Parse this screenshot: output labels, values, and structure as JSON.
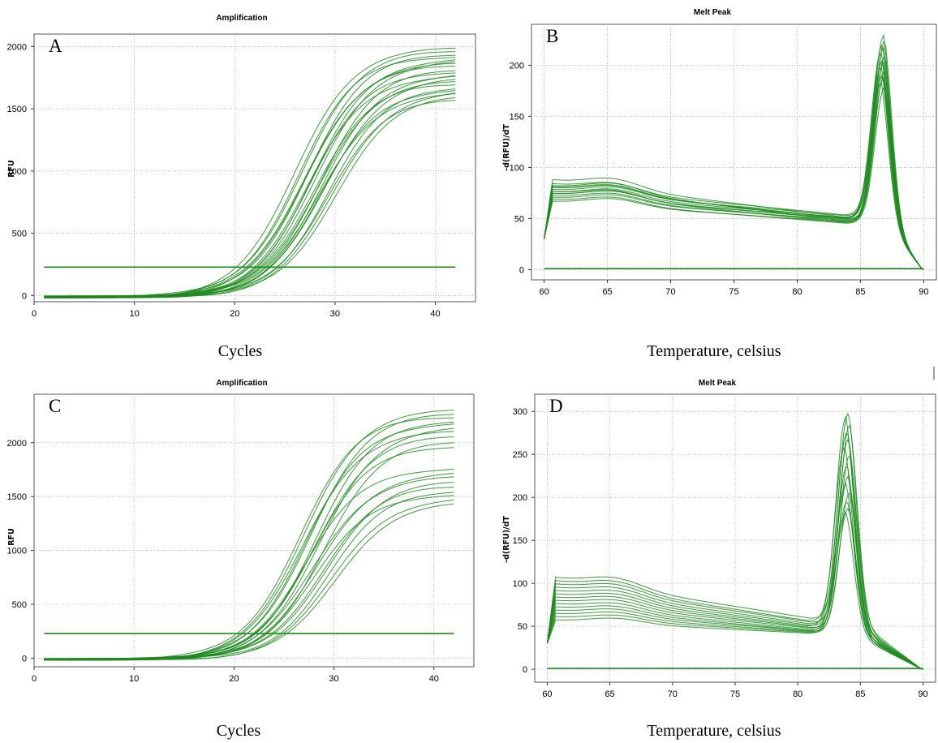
{
  "chart_data": [
    {
      "type": "line",
      "panel_letter": "A",
      "title": "Amplification",
      "ylabel": "RFU",
      "xlabel": "Cycles",
      "xlim": [
        0,
        44
      ],
      "ylim": [
        -50,
        2100
      ],
      "xticks": [
        0,
        10,
        20,
        30,
        40
      ],
      "yticks": [
        0,
        500,
        1000,
        1500,
        2000
      ],
      "grid": true,
      "threshold": 228,
      "series_color": "#1a8a1a",
      "x": [
        1,
        42
      ],
      "series": [
        {
          "plateau": 2000,
          "ct": 26.0
        },
        {
          "plateau": 1980,
          "ct": 26.6
        },
        {
          "plateau": 1960,
          "ct": 27.2
        },
        {
          "plateau": 1940,
          "ct": 26.3
        },
        {
          "plateau": 1920,
          "ct": 27.8
        },
        {
          "plateau": 1900,
          "ct": 28.1
        },
        {
          "plateau": 1880,
          "ct": 27.0
        },
        {
          "plateau": 1860,
          "ct": 26.8
        },
        {
          "plateau": 1840,
          "ct": 28.5
        },
        {
          "plateau": 1820,
          "ct": 27.5
        },
        {
          "plateau": 1800,
          "ct": 28.8
        },
        {
          "plateau": 1780,
          "ct": 27.3
        },
        {
          "plateau": 1760,
          "ct": 29.0
        },
        {
          "plateau": 1740,
          "ct": 28.2
        },
        {
          "plateau": 1720,
          "ct": 27.9
        },
        {
          "plateau": 1700,
          "ct": 29.4
        },
        {
          "plateau": 1680,
          "ct": 28.7
        },
        {
          "plateau": 1660,
          "ct": 29.8
        },
        {
          "plateau": 1640,
          "ct": 28.4
        },
        {
          "plateau": 1620,
          "ct": 30.0
        },
        {
          "plateau": 1600,
          "ct": 29.2
        }
      ]
    },
    {
      "type": "line",
      "panel_letter": "B",
      "title": "Melt Peak",
      "ylabel": "-d(RFU)/dT",
      "xlabel": "Temperature, celsius",
      "xlim": [
        59,
        91
      ],
      "ylim": [
        -10,
        240
      ],
      "xticks": [
        60,
        65,
        70,
        75,
        80,
        85,
        90
      ],
      "yticks": [
        0,
        50,
        100,
        150,
        200
      ],
      "grid": true,
      "baseline": 1,
      "series_color": "#1a8a1a",
      "x": [
        60,
        90
      ],
      "series": [
        {
          "peak": 232,
          "peak_temp": 86.8,
          "shoulder": 88,
          "valley": 52
        },
        {
          "peak": 228,
          "peak_temp": 86.9,
          "shoulder": 85,
          "valley": 54
        },
        {
          "peak": 224,
          "peak_temp": 86.7,
          "shoulder": 92,
          "valley": 56
        },
        {
          "peak": 220,
          "peak_temp": 86.8,
          "shoulder": 80,
          "valley": 50
        },
        {
          "peak": 216,
          "peak_temp": 86.6,
          "shoulder": 84,
          "valley": 55
        },
        {
          "peak": 212,
          "peak_temp": 86.9,
          "shoulder": 78,
          "valley": 53
        },
        {
          "peak": 208,
          "peak_temp": 86.7,
          "shoulder": 82,
          "valley": 57
        },
        {
          "peak": 205,
          "peak_temp": 86.8,
          "shoulder": 76,
          "valley": 51
        },
        {
          "peak": 202,
          "peak_temp": 86.6,
          "shoulder": 86,
          "valley": 58
        },
        {
          "peak": 198,
          "peak_temp": 86.9,
          "shoulder": 74,
          "valley": 52
        },
        {
          "peak": 194,
          "peak_temp": 86.7,
          "shoulder": 80,
          "valley": 55
        },
        {
          "peak": 190,
          "peak_temp": 86.8,
          "shoulder": 72,
          "valley": 49
        },
        {
          "peak": 186,
          "peak_temp": 86.6,
          "shoulder": 78,
          "valley": 54
        },
        {
          "peak": 182,
          "peak_temp": 86.9,
          "shoulder": 70,
          "valley": 50
        }
      ]
    },
    {
      "type": "line",
      "panel_letter": "C",
      "title": "Amplification",
      "ylabel": "RFU",
      "xlabel": "Cycles",
      "xlim": [
        0,
        44
      ],
      "ylim": [
        -80,
        2450
      ],
      "xticks": [
        0,
        10,
        20,
        30,
        40
      ],
      "yticks": [
        0,
        500,
        1000,
        1500,
        2000
      ],
      "grid": true,
      "threshold": 228,
      "series_color": "#1a8a1a",
      "x": [
        1,
        42
      ],
      "series": [
        {
          "plateau": 2320,
          "ct": 27.0
        },
        {
          "plateau": 2290,
          "ct": 27.6
        },
        {
          "plateau": 2260,
          "ct": 26.5
        },
        {
          "plateau": 2230,
          "ct": 28.2
        },
        {
          "plateau": 2200,
          "ct": 27.3
        },
        {
          "plateau": 2160,
          "ct": 28.6
        },
        {
          "plateau": 2120,
          "ct": 26.9
        },
        {
          "plateau": 2080,
          "ct": 28.0
        },
        {
          "plateau": 2040,
          "ct": 29.0
        },
        {
          "plateau": 1990,
          "ct": 27.8
        },
        {
          "plateau": 1780,
          "ct": 27.2
        },
        {
          "plateau": 1740,
          "ct": 28.4
        },
        {
          "plateau": 1700,
          "ct": 27.9
        },
        {
          "plateau": 1660,
          "ct": 29.2
        },
        {
          "plateau": 1620,
          "ct": 28.8
        },
        {
          "plateau": 1580,
          "ct": 29.5
        },
        {
          "plateau": 1540,
          "ct": 28.1
        },
        {
          "plateau": 1500,
          "ct": 29.8
        },
        {
          "plateau": 1460,
          "ct": 30.1
        }
      ]
    },
    {
      "type": "line",
      "panel_letter": "D",
      "title": "Melt Peak",
      "ylabel": "-d(RFU)/dT",
      "xlabel": "Temperature, celsius",
      "xlim": [
        59,
        91
      ],
      "ylim": [
        -15,
        320
      ],
      "xticks": [
        60,
        65,
        70,
        75,
        80,
        85,
        90
      ],
      "yticks": [
        0,
        50,
        100,
        150,
        200,
        250,
        300
      ],
      "grid": true,
      "baseline": 1,
      "series_color": "#1a8a1a",
      "x": [
        60,
        90
      ],
      "series": [
        {
          "peak": 303,
          "peak_temp": 84.0,
          "shoulder": 112,
          "valley": 65
        },
        {
          "peak": 296,
          "peak_temp": 83.8,
          "shoulder": 108,
          "valley": 62
        },
        {
          "peak": 288,
          "peak_temp": 84.1,
          "shoulder": 104,
          "valley": 60
        },
        {
          "peak": 280,
          "peak_temp": 83.9,
          "shoulder": 100,
          "valley": 58
        },
        {
          "peak": 272,
          "peak_temp": 84.0,
          "shoulder": 96,
          "valley": 56
        },
        {
          "peak": 262,
          "peak_temp": 83.7,
          "shoulder": 92,
          "valley": 55
        },
        {
          "peak": 252,
          "peak_temp": 84.1,
          "shoulder": 88,
          "valley": 53
        },
        {
          "peak": 240,
          "peak_temp": 83.9,
          "shoulder": 84,
          "valley": 52
        },
        {
          "peak": 228,
          "peak_temp": 84.0,
          "shoulder": 80,
          "valley": 50
        },
        {
          "peak": 218,
          "peak_temp": 83.8,
          "shoulder": 76,
          "valley": 49
        },
        {
          "peak": 208,
          "peak_temp": 84.1,
          "shoulder": 72,
          "valley": 48
        },
        {
          "peak": 198,
          "peak_temp": 83.9,
          "shoulder": 68,
          "valley": 47
        },
        {
          "peak": 190,
          "peak_temp": 84.0,
          "shoulder": 64,
          "valley": 46
        },
        {
          "peak": 184,
          "peak_temp": 83.8,
          "shoulder": 60,
          "valley": 45
        }
      ]
    }
  ]
}
